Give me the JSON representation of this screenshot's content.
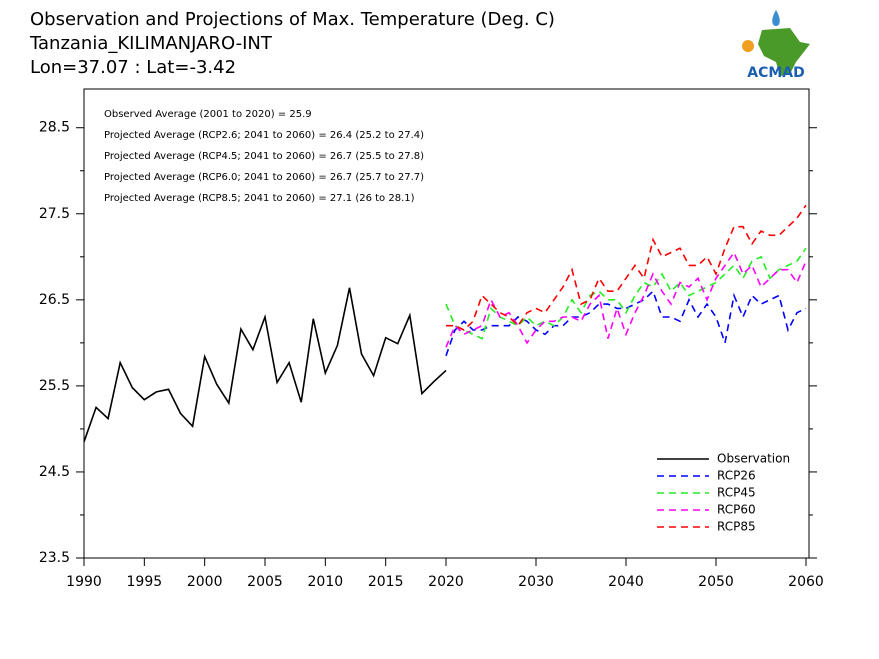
{
  "chart_data": {
    "type": "line",
    "title_lines": [
      "Observation and Projections of Max. Temperature (Deg. C)",
      "Tanzania_KILIMANJARO-INT",
      "Lon=37.07 : Lat=-3.42"
    ],
    "logo_text": "ACMAD",
    "annotations": [
      "Observed Average (2001 to 2020) = 25.9",
      "Projected Average (RCP2.6; 2041 to 2060) = 26.4 (25.2 to 27.4)",
      "Projected Average (RCP4.5; 2041 to 2060) = 26.7 (25.5 to 27.8)",
      "Projected Average (RCP6.0; 2041 to 2060) = 26.7 (25.7 to 27.7)",
      "Projected Average (RCP8.5; 2041 to 2060) = 27.1 (26 to 28.1)"
    ],
    "x_segments": [
      {
        "xlim": [
          1990,
          2020
        ],
        "xticks": [
          1990,
          1995,
          2000,
          2005,
          2010,
          2015,
          2020
        ]
      },
      {
        "xlim": [
          2020,
          2060
        ],
        "xticks": [
          2030,
          2040,
          2050,
          2060
        ]
      }
    ],
    "ylim": [
      23.5,
      28.95
    ],
    "yticks": [
      23.5,
      24.5,
      25.5,
      26.5,
      27.5,
      28.5
    ],
    "yminor": [
      24,
      25,
      26,
      27,
      28
    ],
    "legend": "lower right",
    "series": [
      {
        "name": "Observation",
        "color": "#000000",
        "dashed": false,
        "x": [
          1990,
          1991,
          1992,
          1993,
          1994,
          1995,
          1996,
          1997,
          1998,
          1999,
          2000,
          2001,
          2002,
          2003,
          2004,
          2005,
          2006,
          2007,
          2008,
          2009,
          2010,
          2011,
          2012,
          2013,
          2014,
          2015,
          2016,
          2017,
          2018,
          2019,
          2020
        ],
        "values": [
          24.85,
          25.25,
          25.12,
          25.77,
          25.48,
          25.34,
          25.43,
          25.46,
          25.18,
          25.03,
          25.84,
          25.52,
          25.3,
          26.16,
          25.92,
          26.3,
          25.54,
          25.77,
          25.31,
          26.28,
          25.65,
          25.97,
          26.64,
          25.87,
          25.62,
          26.06,
          25.99,
          26.32,
          25.41,
          25.55,
          25.68
        ]
      },
      {
        "name": "RCP26",
        "color": "#0000ff",
        "dashed": true,
        "x": [
          2020,
          2021,
          2022,
          2023,
          2024,
          2025,
          2026,
          2027,
          2028,
          2029,
          2030,
          2031,
          2032,
          2033,
          2034,
          2035,
          2036,
          2037,
          2038,
          2039,
          2040,
          2041,
          2042,
          2043,
          2044,
          2045,
          2046,
          2047,
          2048,
          2049,
          2050,
          2051,
          2052,
          2053,
          2054,
          2055,
          2056,
          2057,
          2058,
          2059,
          2060
        ],
        "values": [
          25.85,
          26.15,
          26.25,
          26.15,
          26.15,
          26.2,
          26.2,
          26.2,
          26.3,
          26.25,
          26.15,
          26.1,
          26.2,
          26.2,
          26.3,
          26.3,
          26.35,
          26.45,
          26.45,
          26.4,
          26.4,
          26.45,
          26.5,
          26.6,
          26.3,
          26.3,
          26.25,
          26.5,
          26.3,
          26.45,
          26.3,
          26.0,
          26.55,
          26.3,
          26.55,
          26.45,
          26.5,
          26.55,
          26.15,
          26.35,
          26.4
        ]
      },
      {
        "name": "RCP45",
        "color": "#22ee22",
        "dashed": true,
        "x": [
          2020,
          2021,
          2022,
          2023,
          2024,
          2025,
          2026,
          2027,
          2028,
          2029,
          2030,
          2031,
          2032,
          2033,
          2034,
          2035,
          2036,
          2037,
          2038,
          2039,
          2040,
          2041,
          2042,
          2043,
          2044,
          2045,
          2046,
          2047,
          2048,
          2049,
          2050,
          2051,
          2052,
          2053,
          2054,
          2055,
          2056,
          2057,
          2058,
          2059,
          2060
        ],
        "values": [
          26.45,
          26.2,
          26.15,
          26.1,
          26.05,
          26.4,
          26.3,
          26.25,
          26.2,
          26.3,
          26.2,
          26.25,
          26.2,
          26.3,
          26.5,
          26.35,
          26.55,
          26.6,
          26.5,
          26.5,
          26.35,
          26.55,
          26.7,
          26.65,
          26.8,
          26.6,
          26.7,
          26.55,
          26.6,
          26.65,
          26.7,
          26.8,
          26.9,
          26.75,
          26.95,
          27.0,
          26.75,
          26.85,
          26.9,
          26.95,
          27.1
        ]
      },
      {
        "name": "RCP60",
        "color": "#ff00ff",
        "dashed": true,
        "x": [
          2020,
          2021,
          2022,
          2023,
          2024,
          2025,
          2026,
          2027,
          2028,
          2029,
          2030,
          2031,
          2032,
          2033,
          2034,
          2035,
          2036,
          2037,
          2038,
          2039,
          2040,
          2041,
          2042,
          2043,
          2044,
          2045,
          2046,
          2047,
          2048,
          2049,
          2050,
          2051,
          2052,
          2053,
          2054,
          2055,
          2056,
          2057,
          2058,
          2059,
          2060
        ],
        "values": [
          25.95,
          26.2,
          26.1,
          26.15,
          26.2,
          26.5,
          26.3,
          26.35,
          26.2,
          26.0,
          26.15,
          26.25,
          26.25,
          26.3,
          26.3,
          26.25,
          26.45,
          26.55,
          26.05,
          26.4,
          26.1,
          26.35,
          26.55,
          26.8,
          26.6,
          26.45,
          26.7,
          26.65,
          26.75,
          26.5,
          26.75,
          26.9,
          27.05,
          26.8,
          26.9,
          26.65,
          26.75,
          26.85,
          26.85,
          26.7,
          26.95
        ]
      },
      {
        "name": "RCP85",
        "color": "#ff0000",
        "dashed": true,
        "x": [
          2020,
          2021,
          2022,
          2023,
          2024,
          2025,
          2026,
          2027,
          2028,
          2029,
          2030,
          2031,
          2032,
          2033,
          2034,
          2035,
          2036,
          2037,
          2038,
          2039,
          2040,
          2041,
          2042,
          2043,
          2044,
          2045,
          2046,
          2047,
          2048,
          2049,
          2050,
          2051,
          2052,
          2053,
          2054,
          2055,
          2056,
          2057,
          2058,
          2059,
          2060
        ],
        "values": [
          26.2,
          26.2,
          26.15,
          26.25,
          26.55,
          26.45,
          26.35,
          26.3,
          26.2,
          26.35,
          26.4,
          26.35,
          26.5,
          26.65,
          26.85,
          26.45,
          26.5,
          26.75,
          26.6,
          26.6,
          26.75,
          26.9,
          26.75,
          27.2,
          27.0,
          27.05,
          27.1,
          26.9,
          26.9,
          27.0,
          26.8,
          27.1,
          27.35,
          27.35,
          27.15,
          27.3,
          27.25,
          27.25,
          27.35,
          27.45,
          27.6
        ]
      }
    ]
  }
}
